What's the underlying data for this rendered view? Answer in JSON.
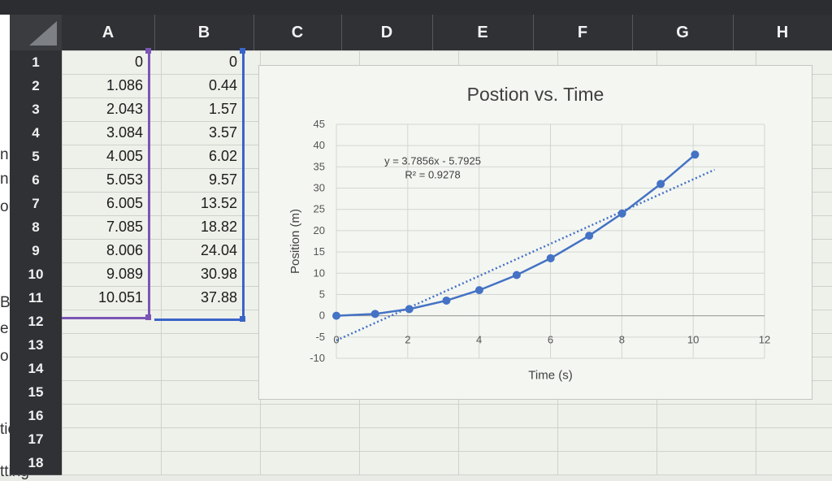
{
  "edge_fragments": [
    "n",
    "nis",
    "ou",
    "Bla",
    "e l",
    "on t",
    "tion",
    "tting"
  ],
  "column_headers": [
    "A",
    "B",
    "C",
    "D",
    "E",
    "F",
    "G",
    "H"
  ],
  "row_headers": [
    "1",
    "2",
    "3",
    "4",
    "5",
    "6",
    "7",
    "8",
    "9",
    "10",
    "11",
    "12",
    "13",
    "14",
    "15",
    "16",
    "17",
    "18"
  ],
  "column_a": [
    "0",
    "1.086",
    "2.043",
    "3.084",
    "4.005",
    "5.053",
    "6.005",
    "7.085",
    "8.006",
    "9.089",
    "10.051"
  ],
  "column_b": [
    "0",
    "0.44",
    "1.57",
    "3.57",
    "6.02",
    "9.57",
    "13.52",
    "18.82",
    "24.04",
    "30.98",
    "37.88"
  ],
  "chart_data": {
    "type": "scatter",
    "title": "Postion vs. Time",
    "xlabel": "Time (s)",
    "ylabel": "Position (m)",
    "xlim": [
      0,
      12
    ],
    "ylim": [
      -10,
      45
    ],
    "x_ticks": [
      "0",
      "2",
      "4",
      "6",
      "8",
      "10",
      "12"
    ],
    "y_ticks": [
      "-10",
      "-5",
      "0",
      "5",
      "10",
      "15",
      "20",
      "25",
      "30",
      "35",
      "40",
      "45"
    ],
    "trendline": {
      "type": "linear",
      "slope": 3.7856,
      "intercept": -5.7925
    },
    "equation_label": "y = 3.7856x - 5.7925",
    "r2_label": "R² = 0.9278",
    "series": [
      {
        "x": [
          0,
          1.086,
          2.043,
          3.084,
          4.005,
          5.053,
          6.005,
          7.085,
          8.006,
          9.089,
          10.051
        ],
        "y": [
          0,
          0.44,
          1.57,
          3.57,
          6.02,
          9.57,
          13.52,
          18.82,
          24.04,
          30.98,
          37.88
        ],
        "color": "#4472c4"
      }
    ],
    "grid": true
  }
}
